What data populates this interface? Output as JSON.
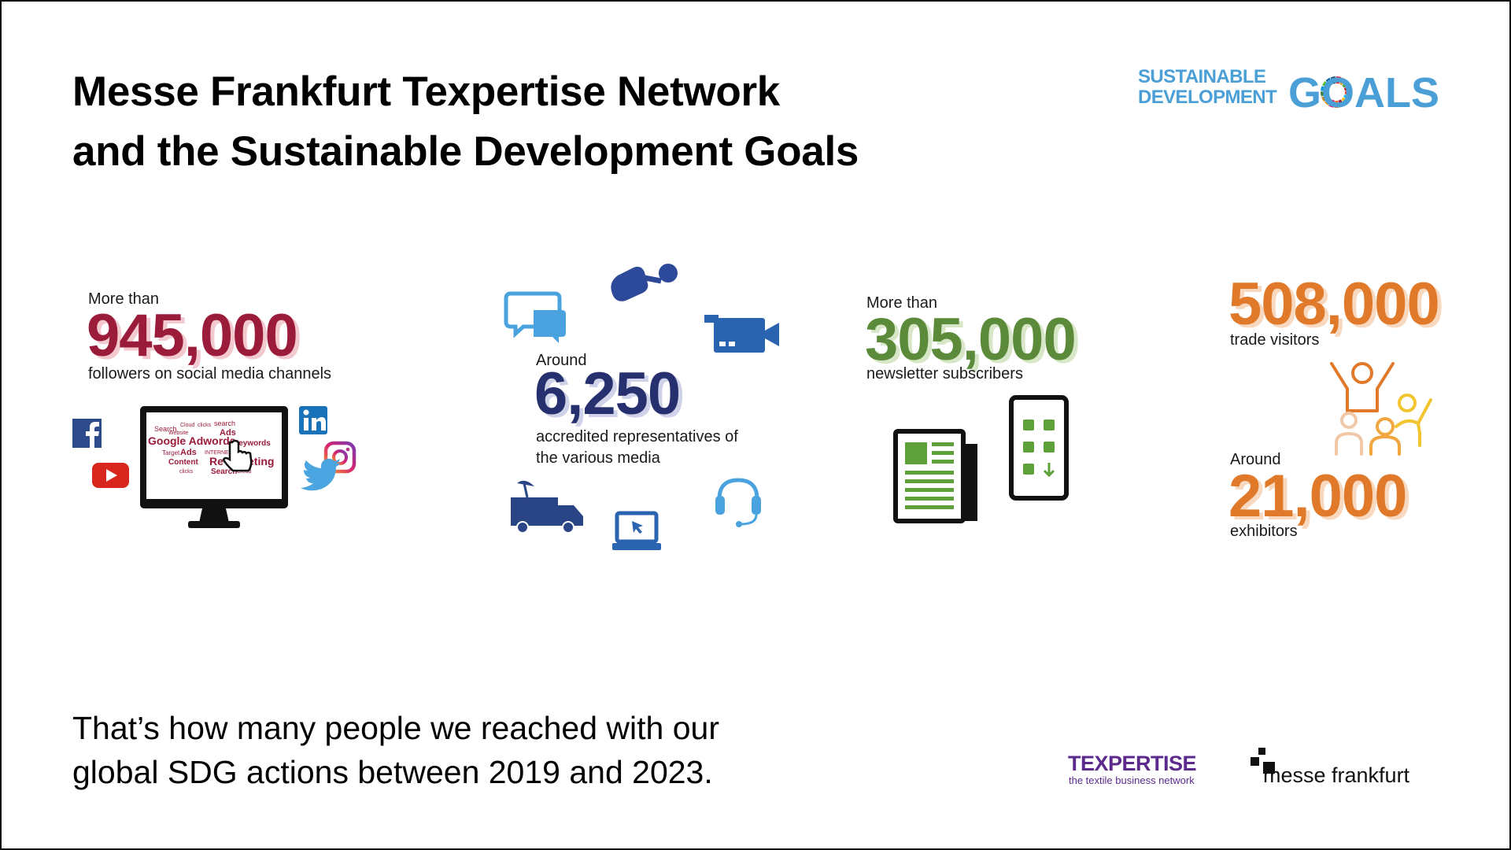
{
  "header": {
    "title_lines": [
      "Messe Frankfurt Texpertise Network",
      "and the Sustainable Development Goals"
    ],
    "sdg_logo": {
      "line1": "SUSTAINABLE",
      "line2": "DEVELOPMENT",
      "word": "GOALS"
    }
  },
  "stats": [
    {
      "intro": "More than",
      "number": "945,000",
      "caption_lines": [
        "followers on social media channels"
      ]
    },
    {
      "intro": "Around",
      "number": "6,250",
      "caption_lines": [
        "accredited representatives of",
        "the various media"
      ]
    },
    {
      "intro": "More than",
      "number": "305,000",
      "caption_lines": [
        "newsletter subscribers"
      ]
    },
    {
      "number": "508,000",
      "caption_lines": [
        "trade visitors"
      ]
    },
    {
      "intro": "Around",
      "number": "21,000",
      "caption_lines": [
        "exhibitors"
      ]
    }
  ],
  "word_cloud": [
    "Search",
    "Cloud",
    "clicks",
    "search",
    "Website",
    "Ads",
    "Google Adwords",
    "Keywords",
    "Target",
    "Ads",
    "INTERNET",
    "Content",
    "Re-targeting",
    "clicks",
    "Search",
    "Cloud"
  ],
  "footer": {
    "lines": [
      "That’s how many people we reached with our",
      "global SDG actions between 2019 and 2023."
    ],
    "texpertise": {
      "name": "TEXPERTISE",
      "tagline": "the textile business network"
    },
    "messe": "messe frankfurt"
  }
}
